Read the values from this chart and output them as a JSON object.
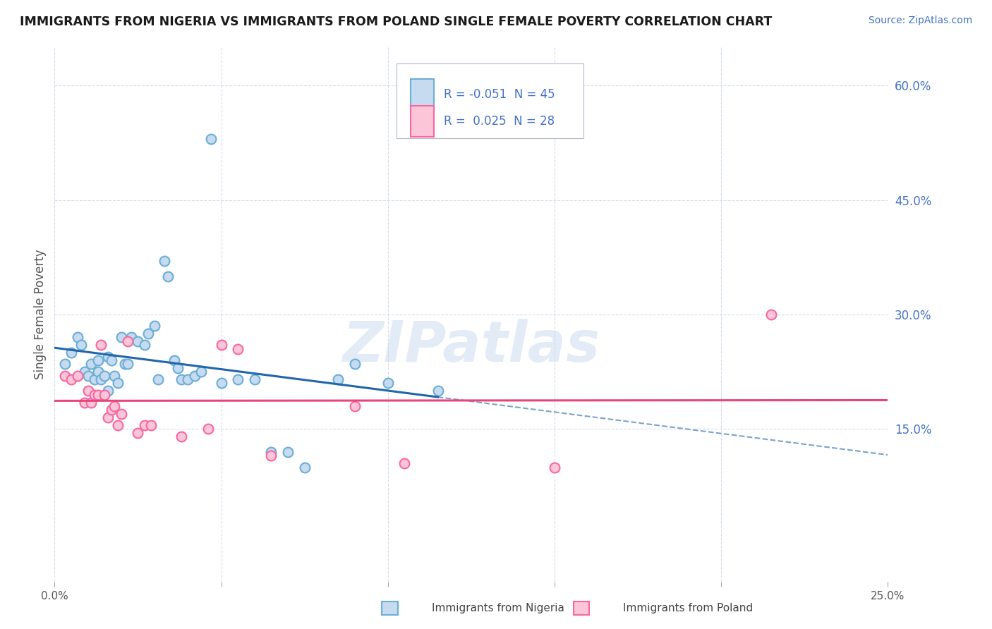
{
  "title": "IMMIGRANTS FROM NIGERIA VS IMMIGRANTS FROM POLAND SINGLE FEMALE POVERTY CORRELATION CHART",
  "source": "Source: ZipAtlas.com",
  "ylabel": "Single Female Poverty",
  "r_nigeria": -0.051,
  "n_nigeria": 45,
  "r_poland": 0.025,
  "n_poland": 28,
  "nigeria_edge_color": "#6baed6",
  "nigeria_face_color": "#c6dbef",
  "poland_edge_color": "#f768a1",
  "poland_face_color": "#fcc5d8",
  "trend_nigeria_color": "#2166ac",
  "trend_poland_color": "#e8457a",
  "xlim": [
    0.0,
    0.25
  ],
  "ylim": [
    -0.05,
    0.65
  ],
  "ytick_vals": [
    0.15,
    0.3,
    0.45,
    0.6
  ],
  "ytick_labels": [
    "15.0%",
    "30.0%",
    "45.0%",
    "60.0%"
  ],
  "xtick_vals": [
    0.0,
    0.05,
    0.1,
    0.15,
    0.2,
    0.25
  ],
  "nigeria_x": [
    0.003,
    0.005,
    0.007,
    0.008,
    0.009,
    0.01,
    0.011,
    0.012,
    0.013,
    0.013,
    0.014,
    0.015,
    0.016,
    0.016,
    0.017,
    0.018,
    0.019,
    0.02,
    0.021,
    0.022,
    0.023,
    0.025,
    0.027,
    0.028,
    0.03,
    0.031,
    0.033,
    0.034,
    0.036,
    0.037,
    0.038,
    0.04,
    0.042,
    0.044,
    0.047,
    0.05,
    0.055,
    0.06,
    0.065,
    0.07,
    0.075,
    0.085,
    0.09,
    0.1,
    0.115
  ],
  "nigeria_y": [
    0.235,
    0.25,
    0.27,
    0.26,
    0.225,
    0.22,
    0.235,
    0.215,
    0.225,
    0.24,
    0.215,
    0.22,
    0.245,
    0.2,
    0.24,
    0.22,
    0.21,
    0.27,
    0.235,
    0.235,
    0.27,
    0.265,
    0.26,
    0.275,
    0.285,
    0.215,
    0.37,
    0.35,
    0.24,
    0.23,
    0.215,
    0.215,
    0.22,
    0.225,
    0.53,
    0.21,
    0.215,
    0.215,
    0.12,
    0.12,
    0.1,
    0.215,
    0.235,
    0.21,
    0.2
  ],
  "poland_x": [
    0.003,
    0.005,
    0.007,
    0.009,
    0.01,
    0.011,
    0.012,
    0.013,
    0.014,
    0.015,
    0.016,
    0.017,
    0.018,
    0.019,
    0.02,
    0.022,
    0.025,
    0.027,
    0.029,
    0.038,
    0.046,
    0.05,
    0.055,
    0.065,
    0.09,
    0.105,
    0.15,
    0.215
  ],
  "poland_y": [
    0.22,
    0.215,
    0.22,
    0.185,
    0.2,
    0.185,
    0.195,
    0.195,
    0.26,
    0.195,
    0.165,
    0.175,
    0.18,
    0.155,
    0.17,
    0.265,
    0.145,
    0.155,
    0.155,
    0.14,
    0.15,
    0.26,
    0.255,
    0.115,
    0.18,
    0.105,
    0.1,
    0.3
  ],
  "watermark": "ZIPatlas",
  "bg_color": "#ffffff",
  "grid_color": "#ccd5e8"
}
